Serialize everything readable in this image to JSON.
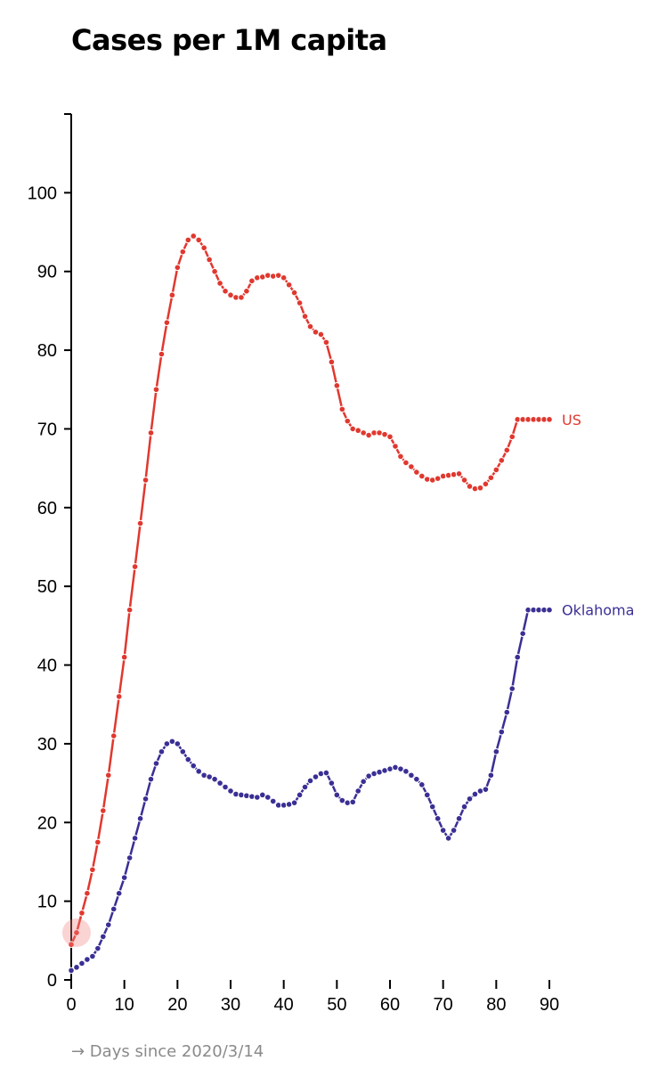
{
  "chart_data": {
    "type": "line",
    "title": "Cases per 1M capita",
    "xlabel": "→ Days since 2020/3/14",
    "ylabel": "",
    "xlim": [
      0,
      90
    ],
    "ylim": [
      0,
      110
    ],
    "xticks": [
      0,
      10,
      20,
      30,
      40,
      50,
      60,
      70,
      80,
      90
    ],
    "yticks": [
      0,
      10,
      20,
      30,
      40,
      50,
      60,
      70,
      80,
      90,
      100
    ],
    "grid": false,
    "legend": "inline-end-labels",
    "series": [
      {
        "name": "US",
        "color": "#e0382f",
        "x": [
          0,
          1,
          2,
          3,
          4,
          5,
          6,
          7,
          8,
          9,
          10,
          11,
          12,
          13,
          14,
          15,
          16,
          17,
          18,
          19,
          20,
          21,
          22,
          23,
          24,
          25,
          26,
          27,
          28,
          29,
          30,
          31,
          32,
          33,
          34,
          35,
          36,
          37,
          38,
          39,
          40,
          41,
          42,
          43,
          44,
          45,
          46,
          47,
          48,
          49,
          50,
          51,
          52,
          53,
          54,
          55,
          56,
          57,
          58,
          59,
          60,
          61,
          62,
          63,
          64,
          65,
          66,
          67,
          68,
          69,
          70,
          71,
          72,
          73,
          74,
          75,
          76,
          77,
          78,
          79,
          80,
          81,
          82,
          83,
          84,
          85,
          86,
          87,
          88,
          89,
          90
        ],
        "y": [
          4.5,
          6,
          8.5,
          11,
          14,
          17.5,
          21.5,
          26,
          31,
          36,
          41,
          47,
          52.5,
          58,
          63.5,
          69.5,
          75,
          79.5,
          83.5,
          87,
          90.5,
          92.5,
          94,
          94.5,
          94,
          93,
          91.5,
          90,
          88.5,
          87.5,
          87,
          86.7,
          86.7,
          87.5,
          88.8,
          89.2,
          89.3,
          89.5,
          89.4,
          89.5,
          89.2,
          88.3,
          87.3,
          86,
          84.3,
          83,
          82.3,
          82,
          81,
          78.5,
          75.5,
          72.5,
          71,
          70,
          69.8,
          69.5,
          69.2,
          69.5,
          69.5,
          69.3,
          69,
          67.8,
          66.5,
          65.7,
          65.2,
          64.5,
          64,
          63.6,
          63.5,
          63.7,
          64,
          64.1,
          64.2,
          64.3,
          63.5,
          62.7,
          62.4,
          62.5,
          63,
          63.8,
          64.8,
          66,
          67.3,
          69,
          71.2,
          71.2,
          71.2,
          71.2,
          71.2,
          71.2,
          71.2
        ]
      },
      {
        "name": "Oklahoma",
        "color": "#3a2f94",
        "x": [
          0,
          1,
          2,
          3,
          4,
          5,
          6,
          7,
          8,
          9,
          10,
          11,
          12,
          13,
          14,
          15,
          16,
          17,
          18,
          19,
          20,
          21,
          22,
          23,
          24,
          25,
          26,
          27,
          28,
          29,
          30,
          31,
          32,
          33,
          34,
          35,
          36,
          37,
          38,
          39,
          40,
          41,
          42,
          43,
          44,
          45,
          46,
          47,
          48,
          49,
          50,
          51,
          52,
          53,
          54,
          55,
          56,
          57,
          58,
          59,
          60,
          61,
          62,
          63,
          64,
          65,
          66,
          67,
          68,
          69,
          70,
          71,
          72,
          73,
          74,
          75,
          76,
          77,
          78,
          79,
          80,
          81,
          82,
          83,
          84,
          85,
          86,
          87,
          88,
          89,
          90
        ],
        "y": [
          1.2,
          1.6,
          2.1,
          2.6,
          3,
          4,
          5.5,
          7,
          9,
          11,
          13,
          15.5,
          18,
          20.5,
          23,
          25.5,
          27.5,
          29,
          30,
          30.3,
          30,
          29,
          28,
          27.2,
          26.5,
          26,
          25.8,
          25.5,
          25,
          24.5,
          24,
          23.6,
          23.5,
          23.4,
          23.3,
          23.2,
          23.5,
          23.2,
          22.7,
          22.2,
          22.2,
          22.3,
          22.5,
          23.5,
          24.5,
          25.3,
          25.8,
          26.2,
          26.3,
          25,
          23.5,
          22.8,
          22.5,
          22.6,
          24,
          25.2,
          25.9,
          26.2,
          26.4,
          26.6,
          26.8,
          27,
          26.8,
          26.5,
          26,
          25.5,
          24.8,
          23.5,
          22,
          20.5,
          19,
          18,
          19,
          20.5,
          22,
          23,
          23.6,
          24,
          24.2,
          26,
          29,
          31.5,
          34,
          37,
          41,
          44,
          47,
          47,
          47,
          47,
          47
        ]
      }
    ]
  }
}
